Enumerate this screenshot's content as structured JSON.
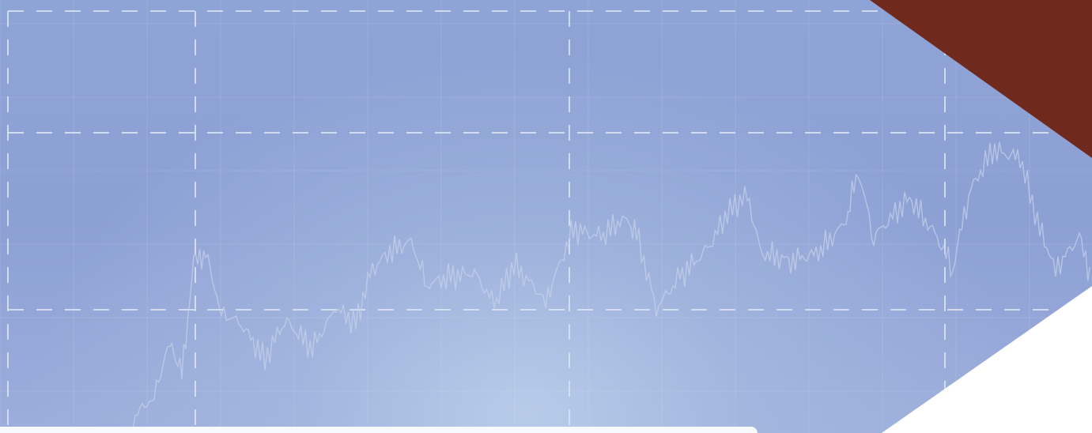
{
  "colors": {
    "background_blue": "#8ea3d6",
    "chart_line": "#c7d3ea",
    "grid_dashed": "#d9e2f1",
    "corner_brown": "#70291d",
    "white": "#ffffff"
  },
  "icons": {
    "decorative_corner": "triangle-shape"
  }
}
